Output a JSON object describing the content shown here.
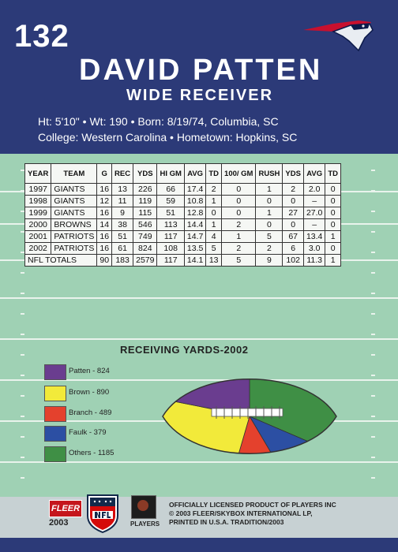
{
  "card": {
    "number": "132",
    "player_name": "DAVID PATTEN",
    "position": "WIDE RECEIVER",
    "bio_line_1": "Ht: 5'10\"  •  Wt: 190  •  Born: 8/19/74, Columbia, SC",
    "bio_line_2": "College: Western Carolina  •  Hometown: Hopkins, SC",
    "team_logo": "patriots-logo-icon"
  },
  "stats": {
    "headers": [
      "YEAR",
      "TEAM",
      "G",
      "REC",
      "YDS",
      "HI GM",
      "AVG",
      "TD",
      "100/ GM",
      "RUSH",
      "YDS",
      "AVG",
      "TD"
    ],
    "rows": [
      [
        "1997",
        "GIANTS",
        "16",
        "13",
        "226",
        "66",
        "17.4",
        "2",
        "0",
        "1",
        "2",
        "2.0",
        "0"
      ],
      [
        "1998",
        "GIANTS",
        "12",
        "11",
        "119",
        "59",
        "10.8",
        "1",
        "0",
        "0",
        "0",
        "–",
        "0"
      ],
      [
        "1999",
        "GIANTS",
        "16",
        "9",
        "115",
        "51",
        "12.8",
        "0",
        "0",
        "1",
        "27",
        "27.0",
        "0"
      ],
      [
        "2000",
        "BROWNS",
        "14",
        "38",
        "546",
        "113",
        "14.4",
        "1",
        "2",
        "0",
        "0",
        "–",
        "0"
      ],
      [
        "2001",
        "PATRIOTS",
        "16",
        "51",
        "749",
        "117",
        "14.7",
        "4",
        "1",
        "5",
        "67",
        "13.4",
        "1"
      ],
      [
        "2002",
        "PATRIOTS",
        "16",
        "61",
        "824",
        "108",
        "13.5",
        "5",
        "2",
        "2",
        "6",
        "3.0",
        "0"
      ]
    ],
    "totals": [
      "NFL TOTALS",
      "90",
      "183",
      "2579",
      "117",
      "14.1",
      "13",
      "5",
      "9",
      "102",
      "11.3",
      "1"
    ]
  },
  "chart_data": {
    "type": "pie",
    "title": "RECEIVING YARDS-2002",
    "slices": [
      {
        "label": "Patten - 824",
        "name": "Patten",
        "value": 824,
        "color": "#6a3d8f"
      },
      {
        "label": "Brown - 890",
        "name": "Brown",
        "value": 890,
        "color": "#f2ea3a"
      },
      {
        "label": "Branch - 489",
        "name": "Branch",
        "value": 489,
        "color": "#e4412d"
      },
      {
        "label": "Faulk - 379",
        "name": "Faulk",
        "value": 379,
        "color": "#2c4fa3"
      },
      {
        "label": "Others - 1185",
        "name": "Others",
        "value": 1185,
        "color": "#3f8f45"
      }
    ]
  },
  "footer": {
    "brand": "FLEER",
    "year": "2003",
    "players_label": "PLAYERS",
    "legal_lines": [
      "OFFICIALLY LICENSED PRODUCT OF PLAYERS INC",
      "© 2003 FLEER/SKYBOX INTERNATIONAL LP,",
      "PRINTED IN U.S.A. TRADITION/2003"
    ]
  },
  "colors": {
    "header_blue": "#2c3a78",
    "field_green": "#9fd1b4"
  }
}
